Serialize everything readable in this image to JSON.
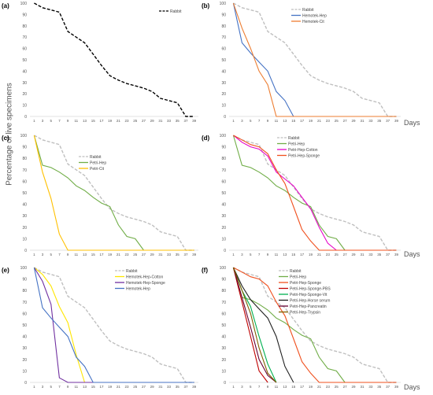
{
  "figure": {
    "ylabel": "Percentage of live specimens",
    "xlabel": "Days"
  },
  "chart_data": [
    {
      "panel_label": "(a)",
      "type": "line",
      "x": [
        1,
        3,
        5,
        7,
        9,
        11,
        13,
        15,
        17,
        19,
        21,
        23,
        25,
        27,
        29,
        31,
        33,
        35,
        37,
        39
      ],
      "ylim": [
        0,
        100
      ],
      "yticks": [
        0,
        10,
        20,
        30,
        40,
        50,
        60,
        70,
        80,
        90,
        100
      ],
      "series": [
        {
          "name": "Rabbit",
          "color": "#000000",
          "dash": "dashed",
          "values": [
            100,
            96,
            94,
            92,
            75,
            70,
            65,
            55,
            45,
            36,
            32,
            29,
            27,
            25,
            22,
            16,
            14,
            12,
            0,
            0
          ]
        }
      ]
    },
    {
      "panel_label": "(b)",
      "type": "line",
      "x": [
        1,
        3,
        5,
        7,
        9,
        11,
        13,
        15,
        17,
        19,
        21,
        23,
        25,
        27,
        29,
        31,
        33,
        35,
        37,
        39
      ],
      "ylim": [
        0,
        100
      ],
      "yticks": [
        0,
        10,
        20,
        30,
        40,
        50,
        60,
        70,
        80,
        90,
        100
      ],
      "series": [
        {
          "name": "Rabbit",
          "color": "#BFBFBF",
          "dash": "dashed",
          "values": [
            100,
            96,
            94,
            92,
            75,
            70,
            65,
            55,
            45,
            36,
            32,
            29,
            27,
            25,
            22,
            16,
            14,
            12,
            0,
            0
          ]
        },
        {
          "name": "Hemotek-Hep",
          "color": "#4472C4",
          "dash": "solid",
          "values": [
            100,
            65,
            56,
            48,
            40,
            22,
            14,
            0,
            null,
            null,
            null,
            null,
            null,
            null,
            null,
            null,
            null,
            null,
            null,
            null
          ]
        },
        {
          "name": "Hemotek-Cit",
          "color": "#ED7D31",
          "dash": "solid",
          "values": [
            100,
            78,
            60,
            40,
            28,
            0,
            0,
            0,
            0,
            0,
            0,
            0,
            0,
            0,
            0,
            0,
            0,
            0,
            0,
            0
          ]
        }
      ]
    },
    {
      "panel_label": "(c)",
      "type": "line",
      "x": [
        1,
        3,
        5,
        7,
        9,
        11,
        13,
        15,
        17,
        19,
        21,
        23,
        25,
        27,
        29,
        31,
        33,
        35,
        37,
        39
      ],
      "ylim": [
        0,
        100
      ],
      "yticks": [
        0,
        10,
        20,
        30,
        40,
        50,
        60,
        70,
        80,
        90,
        100
      ],
      "series": [
        {
          "name": "Rabbit",
          "color": "#BFBFBF",
          "dash": "dashed",
          "values": [
            100,
            96,
            94,
            92,
            75,
            70,
            65,
            55,
            45,
            36,
            32,
            29,
            27,
            25,
            22,
            16,
            14,
            12,
            0,
            0
          ]
        },
        {
          "name": "Petri-Hep",
          "color": "#70AD47",
          "dash": "solid",
          "values": [
            100,
            74,
            72,
            68,
            63,
            56,
            52,
            46,
            41,
            38,
            22,
            12,
            10,
            0,
            null,
            null,
            null,
            null,
            null,
            null
          ]
        },
        {
          "name": "Petri-Cit",
          "color": "#FFC000",
          "dash": "solid",
          "values": [
            100,
            68,
            45,
            14,
            0,
            0,
            0,
            0,
            0,
            0,
            0,
            0,
            0,
            0,
            0,
            0,
            0,
            0,
            0,
            0
          ]
        }
      ]
    },
    {
      "panel_label": "(d)",
      "type": "line",
      "x": [
        1,
        3,
        5,
        7,
        9,
        11,
        13,
        15,
        17,
        19,
        21,
        23,
        25,
        27,
        29,
        31,
        33,
        35,
        37,
        39
      ],
      "ylim": [
        0,
        100
      ],
      "yticks": [
        0,
        10,
        20,
        30,
        40,
        50,
        60,
        70,
        80,
        90,
        100
      ],
      "series": [
        {
          "name": "Rabbit",
          "color": "#BFBFBF",
          "dash": "dashed",
          "values": [
            100,
            96,
            94,
            92,
            75,
            70,
            65,
            55,
            45,
            36,
            32,
            29,
            27,
            25,
            22,
            16,
            14,
            12,
            0,
            0
          ]
        },
        {
          "name": "Petri-Hep",
          "color": "#70AD47",
          "dash": "solid",
          "values": [
            100,
            74,
            72,
            68,
            63,
            56,
            52,
            46,
            41,
            38,
            22,
            12,
            10,
            0,
            null,
            null,
            null,
            null,
            null,
            null
          ]
        },
        {
          "name": "Petri-Hep-Cotton",
          "color": "#E600C8",
          "dash": "solid",
          "values": [
            100,
            94,
            90,
            88,
            82,
            68,
            62,
            56,
            46,
            36,
            20,
            6,
            0,
            null,
            null,
            null,
            null,
            null,
            null,
            null
          ]
        },
        {
          "name": "Petri-Hep-Sponge",
          "color": "#F0501E",
          "dash": "solid",
          "values": [
            100,
            96,
            92,
            90,
            84,
            70,
            58,
            38,
            18,
            8,
            0,
            0,
            0,
            0,
            0,
            0,
            0,
            0,
            0,
            0
          ]
        }
      ]
    },
    {
      "panel_label": "(e)",
      "type": "line",
      "x": [
        1,
        3,
        5,
        7,
        9,
        11,
        13,
        15,
        17,
        19,
        21,
        23,
        25,
        27,
        29,
        31,
        33,
        35,
        37,
        39
      ],
      "ylim": [
        0,
        100
      ],
      "yticks": [
        0,
        10,
        20,
        30,
        40,
        50,
        60,
        70,
        80,
        90,
        100
      ],
      "series": [
        {
          "name": "Rabbit",
          "color": "#BFBFBF",
          "dash": "dashed",
          "values": [
            100,
            96,
            94,
            92,
            75,
            70,
            65,
            55,
            45,
            36,
            32,
            29,
            27,
            25,
            22,
            16,
            14,
            12,
            0,
            0
          ]
        },
        {
          "name": "Hemotek-Hep-Cotton",
          "color": "#FFE600",
          "dash": "solid",
          "values": [
            100,
            94,
            84,
            66,
            52,
            24,
            0,
            null,
            null,
            null,
            null,
            null,
            null,
            null,
            null,
            null,
            null,
            null,
            null,
            null
          ]
        },
        {
          "name": "Hemotek-Hep-Sponge",
          "color": "#7030A0",
          "dash": "solid",
          "values": [
            100,
            88,
            68,
            4,
            0,
            0,
            0,
            0,
            null,
            null,
            null,
            null,
            null,
            null,
            null,
            null,
            null,
            null,
            null,
            null
          ]
        },
        {
          "name": "Hemotek-Hep",
          "color": "#4472C4",
          "dash": "solid",
          "values": [
            100,
            65,
            56,
            48,
            40,
            22,
            14,
            0,
            0,
            0,
            0,
            0,
            0,
            0,
            0,
            0,
            0,
            0,
            0,
            0
          ]
        }
      ]
    },
    {
      "panel_label": "(f)",
      "type": "line",
      "x": [
        1,
        3,
        5,
        7,
        9,
        11,
        13,
        15,
        17,
        19,
        21,
        23,
        25,
        27,
        29,
        31,
        33,
        35,
        37,
        39
      ],
      "ylim": [
        0,
        100
      ],
      "yticks": [
        0,
        10,
        20,
        30,
        40,
        50,
        60,
        70,
        80,
        90,
        100
      ],
      "series": [
        {
          "name": "Rabbit",
          "color": "#BFBFBF",
          "dash": "dashed",
          "values": [
            100,
            96,
            94,
            92,
            75,
            70,
            65,
            55,
            45,
            36,
            32,
            29,
            27,
            25,
            22,
            16,
            14,
            12,
            0,
            0
          ]
        },
        {
          "name": "Petri-Hep",
          "color": "#70AD47",
          "dash": "solid",
          "values": [
            100,
            74,
            72,
            68,
            63,
            56,
            52,
            46,
            41,
            38,
            22,
            12,
            10,
            0,
            null,
            null,
            null,
            null,
            null,
            null
          ]
        },
        {
          "name": "Petri-Hep-Sponge",
          "color": "#F0501E",
          "dash": "solid",
          "values": [
            100,
            96,
            92,
            90,
            84,
            70,
            58,
            38,
            18,
            8,
            0,
            0,
            0,
            0,
            0,
            0,
            0,
            0,
            0,
            0
          ]
        },
        {
          "name": "Petri-Hep-Sponge-PBS",
          "color": "#C00000",
          "dash": "solid",
          "values": [
            100,
            70,
            40,
            10,
            0,
            null,
            null,
            null,
            null,
            null,
            null,
            null,
            null,
            null,
            null,
            null,
            null,
            null,
            null,
            null
          ]
        },
        {
          "name": "Petri-Hep-Sponge-Vit",
          "color": "#00B050",
          "dash": "solid",
          "values": [
            100,
            80,
            66,
            40,
            16,
            0,
            null,
            null,
            null,
            null,
            null,
            null,
            null,
            null,
            null,
            null,
            null,
            null,
            null,
            null
          ]
        },
        {
          "name": "Petri-Hep-Horse serum",
          "color": "#1F1F1F",
          "dash": "solid",
          "values": [
            100,
            84,
            72,
            64,
            56,
            40,
            14,
            0,
            null,
            null,
            null,
            null,
            null,
            null,
            null,
            null,
            null,
            null,
            null,
            null
          ]
        },
        {
          "name": "Petri-Hep-Pancreatin",
          "color": "#660033",
          "dash": "solid",
          "values": [
            100,
            74,
            48,
            20,
            6,
            0,
            null,
            null,
            null,
            null,
            null,
            null,
            null,
            null,
            null,
            null,
            null,
            null,
            null,
            null
          ]
        },
        {
          "name": "Petri-Hep-Trypsin",
          "color": "#806000",
          "dash": "solid",
          "values": [
            100,
            80,
            60,
            30,
            8,
            0,
            null,
            null,
            null,
            null,
            null,
            null,
            null,
            null,
            null,
            null,
            null,
            null,
            null,
            null
          ]
        }
      ]
    }
  ]
}
